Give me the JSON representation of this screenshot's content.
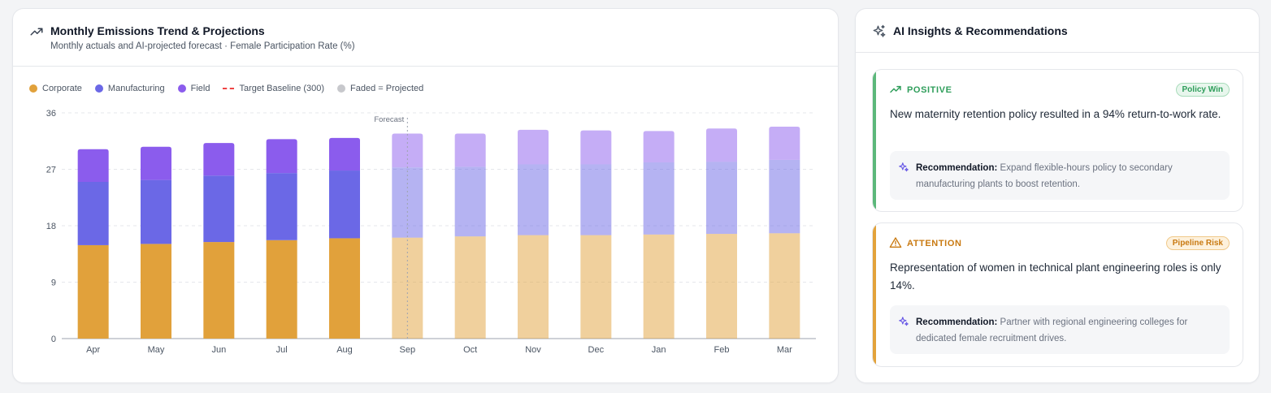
{
  "chart_panel": {
    "title": "Monthly Emissions Trend & Projections",
    "subtitle": "Monthly actuals and AI-projected forecast · Female Participation Rate (%)",
    "icon": "trend-up-icon",
    "legend": {
      "corporate": "Corporate",
      "manufacturing": "Manufacturing",
      "field": "Field",
      "target": "Target Baseline (300)",
      "projected": "Faded = Projected"
    }
  },
  "chart_data": {
    "type": "bar",
    "stacked": true,
    "categories": [
      "Apr",
      "May",
      "Jun",
      "Jul",
      "Aug",
      "Sep",
      "Oct",
      "Nov",
      "Dec",
      "Jan",
      "Feb",
      "Mar"
    ],
    "series": [
      {
        "name": "Corporate",
        "color": "#e1a13b",
        "values": [
          14.9,
          15.1,
          15.4,
          15.7,
          16.0,
          16.1,
          16.3,
          16.5,
          16.5,
          16.6,
          16.7,
          16.8
        ]
      },
      {
        "name": "Manufacturing",
        "color": "#6b68e6",
        "values": [
          10.1,
          10.2,
          10.6,
          10.7,
          10.8,
          11.2,
          11.1,
          11.3,
          11.3,
          11.5,
          11.5,
          11.7
        ]
      },
      {
        "name": "Field",
        "color": "#8b5ced",
        "values": [
          5.2,
          5.3,
          5.2,
          5.4,
          5.2,
          5.4,
          5.3,
          5.5,
          5.4,
          5.0,
          5.3,
          5.3
        ]
      }
    ],
    "projected_from_index": 5,
    "forecast_label": "Forecast",
    "y_ticks": [
      "0",
      "9",
      "18",
      "27",
      "36"
    ],
    "ylim": [
      0,
      36
    ],
    "grid": true,
    "legend_position": "top-left"
  },
  "insights_panel": {
    "title": "AI Insights & Recommendations",
    "icon": "sparkles-icon",
    "items": [
      {
        "kind": "POSITIVE",
        "badge": "Policy Win",
        "color": "#2f9e5b",
        "stripe": "#5cb87a",
        "text": "New maternity retention policy resulted in a 94% return-to-work rate.",
        "rec_label": "Recommendation:",
        "rec_text": "Expand flexible-hours policy to secondary manufacturing plants to boost retention."
      },
      {
        "kind": "ATTENTION",
        "badge": "Pipeline Risk",
        "color": "#c97a12",
        "stripe": "#e3a33b",
        "text": "Representation of women in technical plant engineering roles is only 14%.",
        "rec_label": "Recommendation:",
        "rec_text": "Partner with regional engineering colleges for dedicated female recruitment drives."
      }
    ]
  }
}
